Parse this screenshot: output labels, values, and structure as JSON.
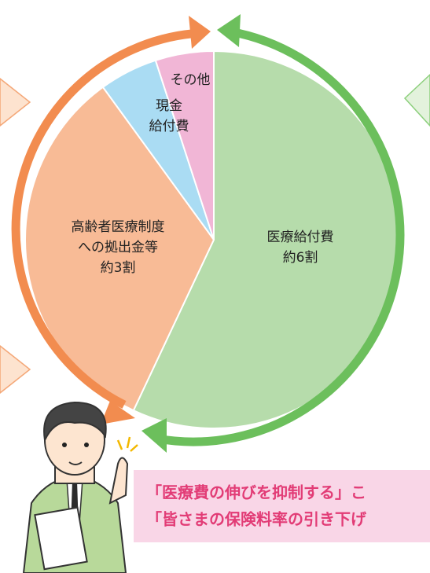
{
  "chart_data": {
    "type": "pie",
    "categories": [
      [
        "医療給付費"
      ],
      [
        "高齢者医療制度",
        "への拠出金等"
      ],
      [
        "現金",
        "給付費"
      ],
      [
        "その他"
      ]
    ],
    "values": [
      57,
      33,
      5,
      5
    ],
    "value_labels": [
      "約6割",
      "約3割",
      null,
      null
    ],
    "colors": [
      "#b6dcab",
      "#f8bb96",
      "#aadcf3",
      "#f1b6d6"
    ]
  },
  "message": {
    "lines": [
      "「医療費の伸びを抑制する」こ",
      "「皆さまの保険料率の引き下げ"
    ]
  }
}
